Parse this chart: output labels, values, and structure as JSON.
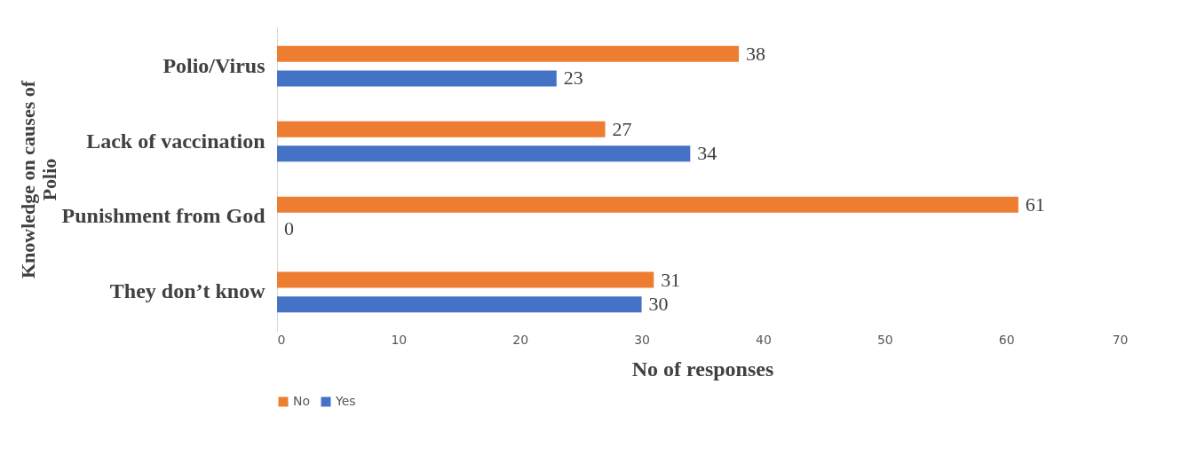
{
  "chart_data": {
    "type": "bar",
    "orientation": "horizontal",
    "xlabel": "No of  responses",
    "ylabel": "Knowledge on causes of Polio",
    "categories": [
      "Polio/Virus",
      "Lack of vaccination",
      "Punishment from God",
      "They don’t know"
    ],
    "series": [
      {
        "name": "No",
        "color": "#ed7d31",
        "values": [
          38,
          27,
          61,
          31
        ]
      },
      {
        "name": "Yes",
        "color": "#4472c4",
        "values": [
          23,
          34,
          0,
          30
        ]
      }
    ],
    "xlim": [
      0,
      70
    ],
    "xticks": [
      0,
      10,
      20,
      30,
      40,
      50,
      60,
      70
    ],
    "data_labels": true,
    "grid": false,
    "legend": "bottom"
  }
}
